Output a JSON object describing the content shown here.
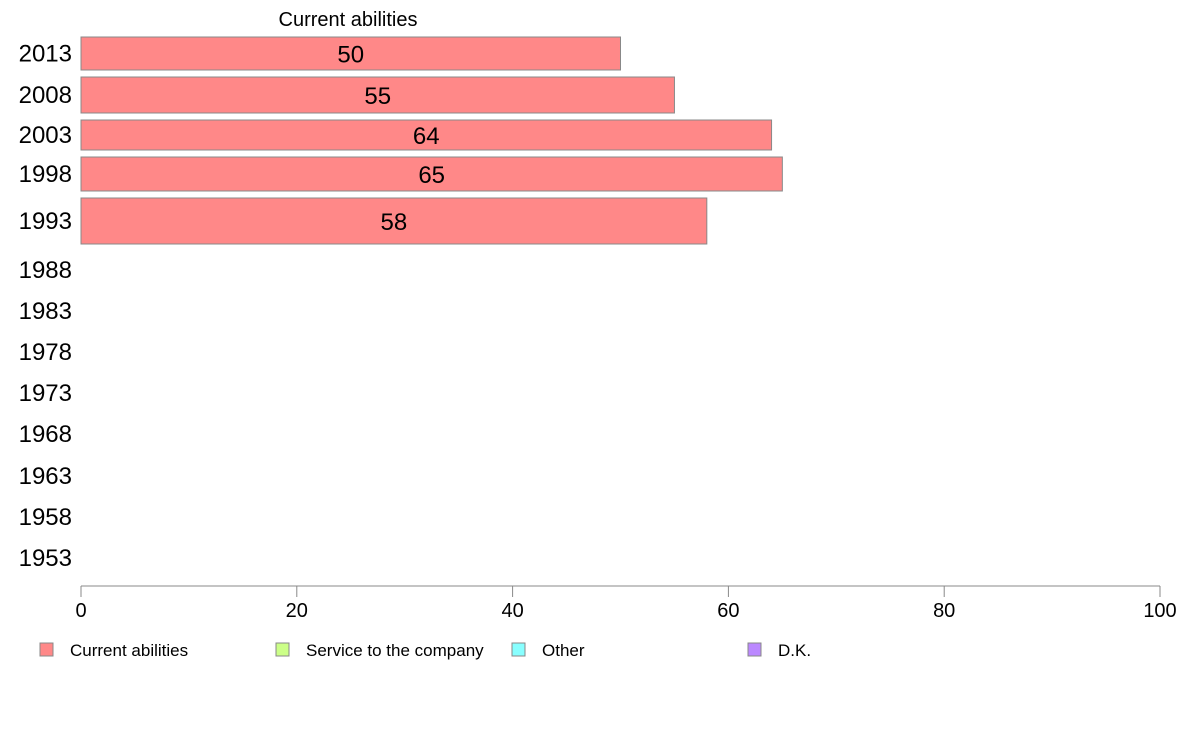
{
  "chart_data": {
    "type": "bar",
    "orientation": "horizontal",
    "series_title": "Current abilities",
    "categories": [
      "2013",
      "2008",
      "2003",
      "1998",
      "1993",
      "1988",
      "1983",
      "1978",
      "1973",
      "1968",
      "1963",
      "1958",
      "1953"
    ],
    "series": [
      {
        "name": "Current abilities",
        "color": "#ff8888",
        "values": [
          50,
          55,
          64,
          65,
          58,
          null,
          null,
          null,
          null,
          null,
          null,
          null,
          null
        ]
      }
    ],
    "xlim": [
      0,
      100
    ],
    "xticks": [
      "0",
      "20",
      "40",
      "60",
      "80",
      "100"
    ],
    "grid": false,
    "legend": {
      "placement": "bottom",
      "items": [
        {
          "label": "Current abilities",
          "color": "#ff8888"
        },
        {
          "label": "Service to the company",
          "color": "#ccff88"
        },
        {
          "label": "Other",
          "color": "#88ffff"
        },
        {
          "label": "D.K.",
          "color": "#bb88ff"
        }
      ]
    }
  }
}
